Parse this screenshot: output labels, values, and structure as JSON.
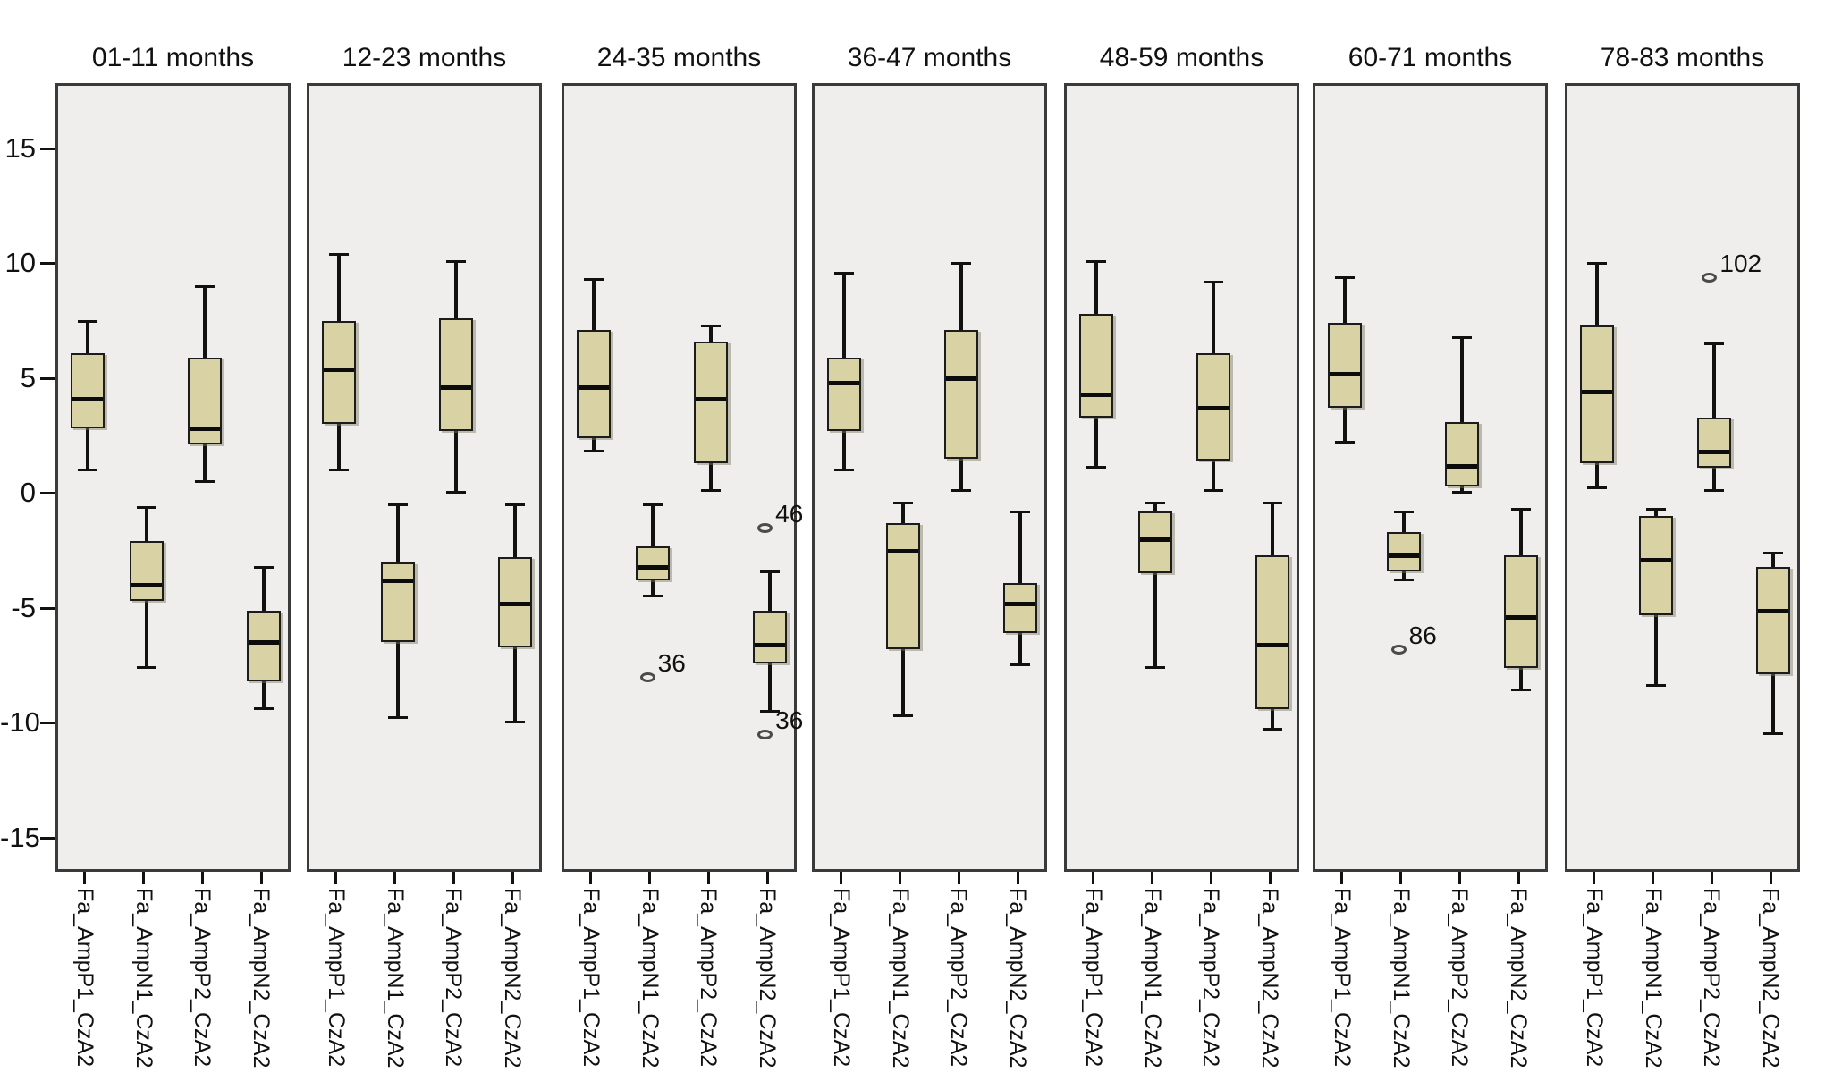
{
  "chart_data": {
    "type": "boxplot",
    "title": "",
    "xlabel": "",
    "ylabel": "",
    "ylim": [
      -17,
      18
    ],
    "yticks": [
      15,
      10,
      5,
      0,
      -5,
      -10,
      -15
    ],
    "grid": false,
    "panel_layout": "7 panels in one horizontal row sharing a single y-axis at far left; category tick labels rotated 90 degrees below each panel",
    "categories": [
      "Fa_AmpP1_CzA2",
      "Fa_AmpN1_CzA2",
      "Fa_AmpP2_CzA2",
      "Fa_AmpN2_CzA2"
    ],
    "colors": {
      "box_fill": "#d8d2a4",
      "box_border": "#1c1c1c",
      "median": "#0c0c0c",
      "whisker": "#111111",
      "panel_background": "#efeeec",
      "panel_border": "#3a3a3a",
      "figure_background": "#ffffff",
      "text": "#111111"
    },
    "panels": [
      {
        "label": "01-11 months",
        "boxes": [
          {
            "category": "Fa_AmpP1_CzA2",
            "low": 1.1,
            "q1": 2.9,
            "median": 4.2,
            "q3": 6.2,
            "high": 7.6,
            "outliers": []
          },
          {
            "category": "Fa_AmpN1_CzA2",
            "low": -7.5,
            "q1": -4.6,
            "median": -3.9,
            "q3": -2.0,
            "high": -0.5,
            "outliers": []
          },
          {
            "category": "Fa_AmpP2_CzA2",
            "low": 0.6,
            "q1": 2.2,
            "median": 2.9,
            "q3": 6.0,
            "high": 9.1,
            "outliers": []
          },
          {
            "category": "Fa_AmpN2_CzA2",
            "low": -9.3,
            "q1": -8.1,
            "median": -6.4,
            "q3": -5.0,
            "high": -3.1,
            "outliers": []
          }
        ]
      },
      {
        "label": "12-23 months",
        "boxes": [
          {
            "category": "Fa_AmpP1_CzA2",
            "low": 1.1,
            "q1": 3.1,
            "median": 5.5,
            "q3": 7.6,
            "high": 10.5,
            "outliers": []
          },
          {
            "category": "Fa_AmpN1_CzA2",
            "low": -9.7,
            "q1": -6.4,
            "median": -3.7,
            "q3": -2.9,
            "high": -0.4,
            "outliers": []
          },
          {
            "category": "Fa_AmpP2_CzA2",
            "low": 0.1,
            "q1": 2.8,
            "median": 4.7,
            "q3": 7.7,
            "high": 10.2,
            "outliers": []
          },
          {
            "category": "Fa_AmpN2_CzA2",
            "low": -9.9,
            "q1": -6.6,
            "median": -4.7,
            "q3": -2.7,
            "high": -0.4,
            "outliers": []
          }
        ]
      },
      {
        "label": "24-35 months",
        "boxes": [
          {
            "category": "Fa_AmpP1_CzA2",
            "low": 1.9,
            "q1": 2.5,
            "median": 4.7,
            "q3": 7.2,
            "high": 9.4,
            "outliers": []
          },
          {
            "category": "Fa_AmpN1_CzA2",
            "low": -4.4,
            "q1": -3.7,
            "median": -3.1,
            "q3": -2.2,
            "high": -0.4,
            "outliers": [
              {
                "value": -7.9,
                "label": "36"
              }
            ]
          },
          {
            "category": "Fa_AmpP2_CzA2",
            "low": 0.2,
            "q1": 1.4,
            "median": 4.2,
            "q3": 6.7,
            "high": 7.4,
            "outliers": []
          },
          {
            "category": "Fa_AmpN2_CzA2",
            "low": -9.4,
            "q1": -7.3,
            "median": -6.5,
            "q3": -5.0,
            "high": -3.3,
            "outliers": [
              {
                "value": -1.4,
                "label": "46"
              },
              {
                "value": -10.4,
                "label": "36"
              }
            ]
          }
        ]
      },
      {
        "label": "36-47 months",
        "boxes": [
          {
            "category": "Fa_AmpP1_CzA2",
            "low": 1.1,
            "q1": 2.8,
            "median": 4.9,
            "q3": 6.0,
            "high": 9.7,
            "outliers": []
          },
          {
            "category": "Fa_AmpN1_CzA2",
            "low": -9.6,
            "q1": -6.7,
            "median": -2.4,
            "q3": -1.2,
            "high": -0.3,
            "outliers": []
          },
          {
            "category": "Fa_AmpP2_CzA2",
            "low": 0.2,
            "q1": 1.6,
            "median": 5.1,
            "q3": 7.2,
            "high": 10.1,
            "outliers": []
          },
          {
            "category": "Fa_AmpN2_CzA2",
            "low": -7.4,
            "q1": -6.0,
            "median": -4.7,
            "q3": -3.8,
            "high": -0.7,
            "outliers": []
          }
        ]
      },
      {
        "label": "48-59 months",
        "boxes": [
          {
            "category": "Fa_AmpP1_CzA2",
            "low": 1.2,
            "q1": 3.4,
            "median": 4.4,
            "q3": 7.9,
            "high": 10.2,
            "outliers": []
          },
          {
            "category": "Fa_AmpN1_CzA2",
            "low": -7.5,
            "q1": -3.4,
            "median": -1.9,
            "q3": -0.7,
            "high": -0.3,
            "outliers": []
          },
          {
            "category": "Fa_AmpP2_CzA2",
            "low": 0.2,
            "q1": 1.5,
            "median": 3.8,
            "q3": 6.2,
            "high": 9.3,
            "outliers": []
          },
          {
            "category": "Fa_AmpN2_CzA2",
            "low": -10.2,
            "q1": -9.3,
            "median": -6.5,
            "q3": -2.6,
            "high": -0.3,
            "outliers": []
          }
        ]
      },
      {
        "label": "60-71 months",
        "boxes": [
          {
            "category": "Fa_AmpP1_CzA2",
            "low": 2.3,
            "q1": 3.8,
            "median": 5.3,
            "q3": 7.5,
            "high": 9.5,
            "outliers": []
          },
          {
            "category": "Fa_AmpN1_CzA2",
            "low": -3.7,
            "q1": -3.3,
            "median": -2.6,
            "q3": -1.6,
            "high": -0.7,
            "outliers": [
              {
                "value": -6.7,
                "label": "86"
              }
            ]
          },
          {
            "category": "Fa_AmpP2_CzA2",
            "low": 0.1,
            "q1": 0.4,
            "median": 1.3,
            "q3": 3.2,
            "high": 6.9,
            "outliers": []
          },
          {
            "category": "Fa_AmpN2_CzA2",
            "low": -8.5,
            "q1": -7.5,
            "median": -5.3,
            "q3": -2.6,
            "high": -0.6,
            "outliers": []
          }
        ]
      },
      {
        "label": "78-83 months",
        "boxes": [
          {
            "category": "Fa_AmpP1_CzA2",
            "low": 0.3,
            "q1": 1.4,
            "median": 4.5,
            "q3": 7.4,
            "high": 10.1,
            "outliers": []
          },
          {
            "category": "Fa_AmpN1_CzA2",
            "low": -8.3,
            "q1": -5.2,
            "median": -2.8,
            "q3": -0.9,
            "high": -0.6,
            "outliers": []
          },
          {
            "category": "Fa_AmpP2_CzA2",
            "low": 0.2,
            "q1": 1.2,
            "median": 1.9,
            "q3": 3.4,
            "high": 6.6,
            "outliers": [
              {
                "value": 9.5,
                "label": "102"
              }
            ]
          },
          {
            "category": "Fa_AmpN2_CzA2",
            "low": -10.4,
            "q1": -7.8,
            "median": -5.0,
            "q3": -3.1,
            "high": -2.5,
            "outliers": []
          }
        ]
      }
    ]
  }
}
